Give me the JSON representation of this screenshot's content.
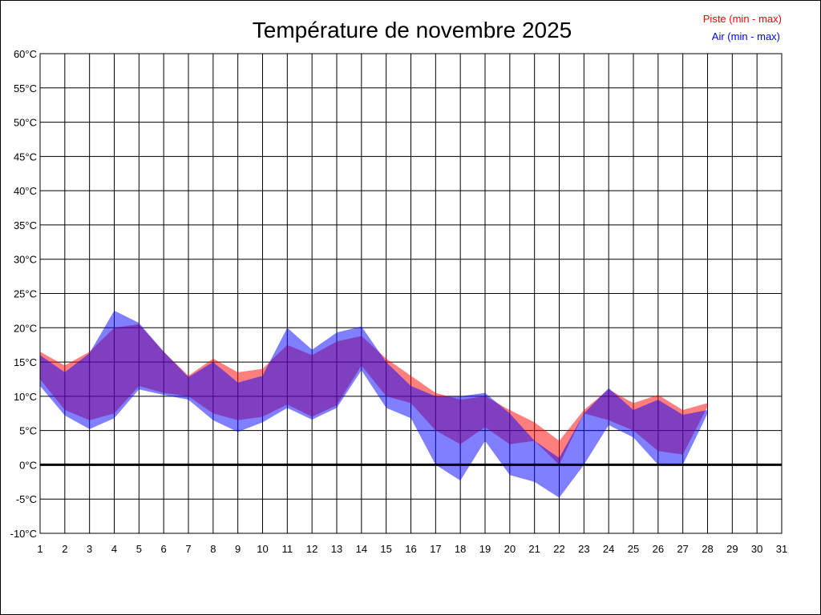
{
  "chart_data": {
    "type": "area",
    "title": "Température de novembre 2025",
    "legend_position": "top-right",
    "grid": true,
    "xlim": [
      1,
      31
    ],
    "ylim": [
      -10,
      60
    ],
    "x_ticks": [
      "1",
      "2",
      "3",
      "4",
      "5",
      "6",
      "7",
      "8",
      "9",
      "10",
      "11",
      "12",
      "13",
      "14",
      "15",
      "16",
      "17",
      "18",
      "19",
      "20",
      "21",
      "22",
      "23",
      "24",
      "25",
      "26",
      "27",
      "28",
      "29",
      "30",
      "31"
    ],
    "y_ticks": [
      "60°C",
      "55°C",
      "50°C",
      "45°C",
      "40°C",
      "35°C",
      "30°C",
      "25°C",
      "20°C",
      "15°C",
      "10°C",
      "5°C",
      "0°C",
      "-5°C",
      "-10°C"
    ],
    "y_tick_values": [
      60,
      55,
      50,
      45,
      40,
      35,
      30,
      25,
      20,
      15,
      10,
      5,
      0,
      -5,
      -10
    ],
    "reference_line": 0,
    "series": [
      {
        "name": "Piste (min - max)",
        "color": "#ff0000",
        "x": [
          1,
          2,
          3,
          4,
          5,
          6,
          7,
          8,
          9,
          10,
          11,
          12,
          13,
          14,
          15,
          16,
          17,
          18,
          19,
          20,
          21,
          22,
          23,
          24,
          25,
          26,
          27,
          28
        ],
        "min": [
          12.5,
          8.0,
          6.5,
          7.5,
          11.5,
          10.5,
          10.0,
          7.5,
          6.5,
          7.0,
          8.8,
          7.0,
          8.7,
          14.5,
          10.0,
          9.0,
          5.0,
          3.0,
          5.5,
          3.0,
          3.5,
          0.0,
          7.5,
          6.5,
          5.0,
          2.0,
          1.5,
          8.5
        ],
        "max": [
          16.5,
          14.5,
          16.5,
          20.0,
          20.5,
          16.5,
          13.0,
          15.5,
          13.5,
          14.0,
          17.5,
          16.0,
          18.0,
          18.8,
          15.5,
          13.0,
          10.5,
          9.5,
          10.0,
          8.0,
          6.2,
          3.5,
          8.0,
          11.0,
          9.0,
          10.2,
          8.0,
          9.0
        ]
      },
      {
        "name": "Air (min - max)",
        "color": "#0000ff",
        "x": [
          1,
          2,
          3,
          4,
          5,
          6,
          7,
          8,
          9,
          10,
          11,
          12,
          13,
          14,
          15,
          16,
          17,
          18,
          19,
          20,
          21,
          22,
          23,
          24,
          25,
          26,
          27,
          28
        ],
        "min": [
          11.5,
          7.2,
          5.2,
          6.8,
          11.0,
          10.2,
          9.5,
          6.5,
          4.8,
          6.2,
          8.3,
          6.6,
          8.3,
          13.8,
          8.3,
          6.8,
          0.0,
          -2.3,
          3.5,
          -1.5,
          -2.5,
          -4.8,
          0.0,
          5.8,
          4.0,
          0.0,
          0.0,
          7.5
        ],
        "max": [
          16.0,
          13.5,
          16.3,
          22.5,
          20.7,
          16.5,
          12.8,
          15.0,
          12.0,
          13.0,
          20.0,
          16.8,
          19.3,
          20.2,
          15.0,
          11.5,
          10.0,
          10.0,
          10.5,
          7.5,
          3.5,
          1.0,
          7.5,
          11.2,
          8.0,
          9.5,
          7.3,
          8.0
        ]
      }
    ]
  }
}
